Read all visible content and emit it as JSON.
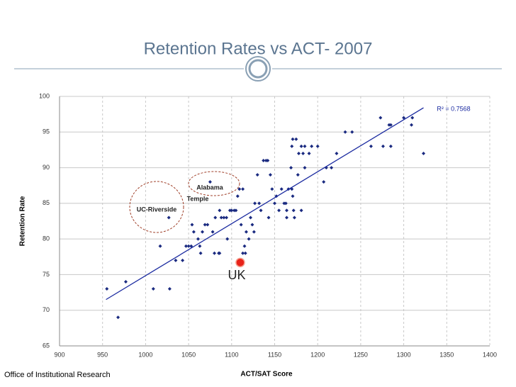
{
  "chart_data": {
    "type": "scatter",
    "title": "Retention Rates vs ACT- 2007",
    "x_label": "ACT/SAT Score",
    "y_label": "Retention Rate",
    "footer": "Office of Institutional Research",
    "r_squared_label": "R² = 0.7568",
    "annotations": [
      "Alabama",
      "Temple",
      "UC-Riverside",
      "UK"
    ],
    "xlim": [
      900,
      1400
    ],
    "xticks": [
      900,
      950,
      1000,
      1050,
      1100,
      1150,
      1200,
      1250,
      1300,
      1350,
      1400
    ],
    "ylim": [
      65,
      100
    ],
    "yticks": [
      65,
      70,
      75,
      80,
      85,
      90,
      95,
      100
    ],
    "grid": true,
    "color": "#1a2a80",
    "x": [
      955,
      968,
      977,
      1009,
      1017,
      1028,
      1027,
      1035,
      1043,
      1047,
      1050,
      1053,
      1054,
      1056,
      1061,
      1063,
      1064,
      1066,
      1069,
      1072,
      1075,
      1078,
      1080,
      1081,
      1085,
      1086,
      1086,
      1088,
      1091,
      1094,
      1095,
      1098,
      1100,
      1103,
      1105,
      1107,
      1109,
      1111,
      1113,
      1113,
      1115,
      1116,
      1117,
      1120,
      1122,
      1124,
      1126,
      1127,
      1130,
      1132,
      1134,
      1137,
      1140,
      1142,
      1143,
      1145,
      1147,
      1150,
      1152,
      1155,
      1158,
      1161,
      1163,
      1164,
      1164,
      1166,
      1169,
      1170,
      1170,
      1171,
      1172,
      1173,
      1171,
      1175,
      1177,
      1178,
      1181,
      1181,
      1183,
      1185,
      1185,
      1190,
      1193,
      1200,
      1207,
      1210,
      1216,
      1222,
      1232,
      1240,
      1262,
      1273,
      1276,
      1283,
      1285,
      1285,
      1300,
      1309,
      1310,
      1323
    ],
    "y": [
      73,
      69,
      74,
      73,
      79,
      73,
      83,
      77,
      77,
      79,
      79,
      79,
      82,
      81,
      80,
      79,
      78,
      81,
      82,
      82,
      88,
      81,
      78,
      83,
      78,
      78,
      84,
      83,
      83,
      83,
      80,
      84,
      84,
      84,
      84,
      86,
      87,
      82,
      87,
      78,
      79,
      78,
      81,
      80,
      83,
      82,
      81,
      85,
      89,
      85,
      84,
      91,
      91,
      91,
      83,
      89,
      87,
      85,
      86,
      84,
      87,
      85,
      85,
      84,
      83,
      87,
      90,
      93,
      87,
      86,
      84,
      83,
      94,
      94,
      89,
      92,
      93,
      84,
      92,
      90,
      93,
      92,
      93,
      93,
      88,
      90,
      90,
      92,
      95,
      95,
      93,
      97,
      93,
      96,
      96,
      93,
      97,
      96,
      97,
      92
    ],
    "highlight": {
      "x": 1110,
      "y": 76.7,
      "color": "#e8231a"
    },
    "trendline": {
      "x": [
        954,
        1323
      ],
      "y": [
        71.5,
        98.4
      ],
      "color": "#1a2aa0"
    }
  }
}
